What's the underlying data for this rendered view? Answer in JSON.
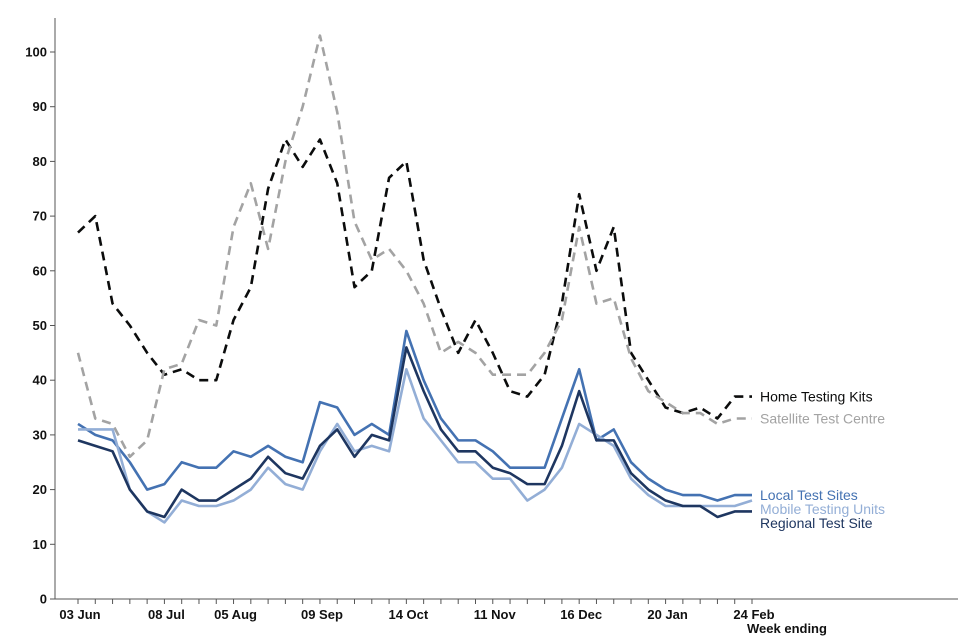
{
  "chart_data": {
    "type": "line",
    "title": "",
    "xlabel": "Week ending",
    "ylabel": "",
    "ylim": [
      0,
      105
    ],
    "yticks": [
      0,
      10,
      20,
      30,
      40,
      50,
      60,
      70,
      80,
      90,
      100
    ],
    "ytick_labels": [
      "0",
      "10",
      "20",
      "30",
      "40",
      "50",
      "60",
      "70",
      "80",
      "90",
      "100"
    ],
    "x_count": 40,
    "xticks": [
      {
        "index": 0,
        "label": "03 Jun"
      },
      {
        "index": 5,
        "label": "08 Jul"
      },
      {
        "index": 9,
        "label": "05 Aug"
      },
      {
        "index": 14,
        "label": "09 Sep"
      },
      {
        "index": 19,
        "label": "14 Oct"
      },
      {
        "index": 24,
        "label": "11 Nov"
      },
      {
        "index": 29,
        "label": "16 Dec"
      },
      {
        "index": 34,
        "label": "20 Jan"
      },
      {
        "index": 39,
        "label": "24 Feb"
      }
    ],
    "series": [
      {
        "name": "Home Testing Kits",
        "color": "#0b0c0c",
        "dashed": true,
        "values": [
          67,
          70,
          54,
          50,
          45,
          41,
          42,
          40,
          40,
          51,
          57,
          75,
          84,
          79,
          84,
          76,
          57,
          60,
          77,
          80,
          62,
          53,
          45,
          51,
          45,
          38,
          37,
          41,
          54,
          74,
          60,
          68,
          45,
          40,
          35,
          34,
          35,
          33,
          37,
          37
        ]
      },
      {
        "name": "Satellite Test Centre",
        "color": "#a3a3a3",
        "dashed": true,
        "values": [
          45,
          33,
          32,
          26,
          29,
          42,
          43,
          51,
          50,
          68,
          76,
          64,
          80,
          90,
          103,
          89,
          69,
          62,
          64,
          60,
          54,
          45,
          47,
          45,
          41,
          41,
          41,
          45,
          51,
          68,
          54,
          55,
          44,
          38,
          36,
          34,
          34,
          32,
          33,
          33
        ]
      },
      {
        "name": "Local Test Sites",
        "color": "#4472b2",
        "dashed": false,
        "values": [
          32,
          30,
          29,
          25,
          20,
          21,
          25,
          24,
          24,
          27,
          26,
          28,
          26,
          25,
          36,
          35,
          30,
          32,
          30,
          49,
          40,
          33,
          29,
          29,
          27,
          24,
          24,
          24,
          33,
          42,
          29,
          31,
          25,
          22,
          20,
          19,
          19,
          18,
          19,
          19
        ]
      },
      {
        "name": "Mobile Testing Units",
        "color": "#93aed6",
        "dashed": false,
        "values": [
          31,
          31,
          31,
          20,
          16,
          14,
          18,
          17,
          17,
          18,
          20,
          24,
          21,
          20,
          27,
          32,
          27,
          28,
          27,
          42,
          33,
          29,
          25,
          25,
          22,
          22,
          18,
          20,
          24,
          32,
          30,
          28,
          22,
          19,
          17,
          17,
          17,
          17,
          17,
          18
        ]
      },
      {
        "name": "Regional Test Site",
        "color": "#1e3660",
        "dashed": false,
        "values": [
          29,
          28,
          27,
          20,
          16,
          15,
          20,
          18,
          18,
          20,
          22,
          26,
          23,
          22,
          28,
          31,
          26,
          30,
          29,
          46,
          38,
          31,
          27,
          27,
          24,
          23,
          21,
          21,
          28,
          38,
          29,
          29,
          23,
          20,
          18,
          17,
          17,
          15,
          16,
          16
        ]
      }
    ],
    "legend": "direct labels at right end of lines",
    "grid": false
  }
}
